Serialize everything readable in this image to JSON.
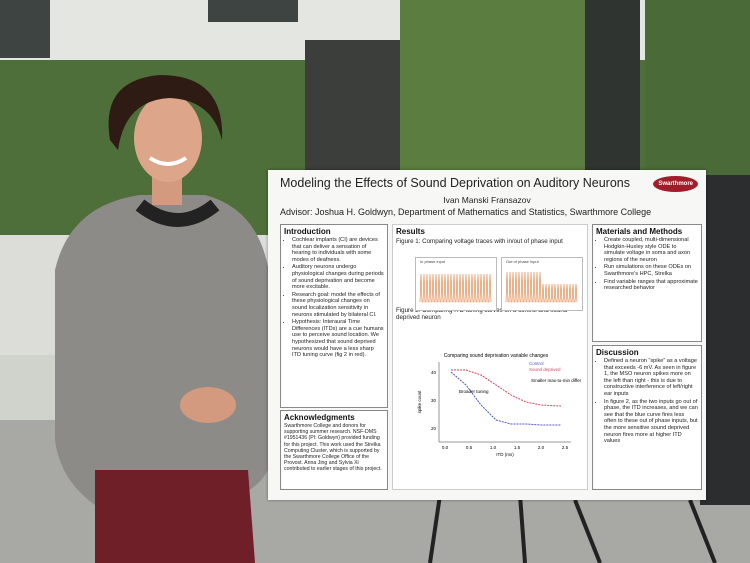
{
  "poster": {
    "logo": "Swarthmore",
    "title": "Modeling the Effects of Sound Deprivation on Auditory Neurons",
    "author": "Ivan Manski Fransazov",
    "advisor": "Advisor: Joshua H. Goldwyn, Department of Mathematics and Statistics, Swarthmore College",
    "introduction": {
      "heading": "Introduction",
      "bullets": [
        "Cochlear implants (CI) are devices that can deliver a sensation of hearing to individuals with some modes of deafness.",
        "Auditory neurons undergo physiological changes during periods of sound deprivation and become more excitable.",
        "Research goal: model the effects of these physiological changes on sound localization sensitivity in neurons stimulated by bilateral CI.",
        "Hypothesis: Interaural Time Differences (ITDs) are a cue humans use to perceive sound location. We hypothesized that sound deprived neurons would have a less sharp ITD tuning curve (fig 2 in red)."
      ]
    },
    "acknowledgments": {
      "heading": "Acknowledgments",
      "text": "Swarthmore College and donors for supporting summer research. NSF-DMS #1951436 (PI: Goldwyn) provided funding for this project. This work used the Strelka Computing Cluster, which is supported by the Swarthmore College Office of the Provost. Anna Jing and Sylvia Xi contributed to earlier stages of this project."
    },
    "results": {
      "heading": "Results",
      "figure1_caption": "Figure 1: Comparing voltage traces with in/out of phase input",
      "figure1_panels": [
        "In phase input",
        "Out of phase input"
      ],
      "figure2_caption": "Figure 2: Comparing ITD tuning curves on a control and sound deprived neuron",
      "figure2_title": "Comparing sound deprivation variable changes",
      "figure2_legend": [
        "Control",
        "Sound deprived"
      ],
      "figure2_annotations": [
        "Broader tuning",
        "Smaller max-to-min difference"
      ],
      "figure2_xlabel": "ITD (ms)",
      "figure2_ylabel": "spike count",
      "figure2_xticks": [
        "0.0",
        "0.5",
        "1.0",
        "1.5",
        "2.0",
        "2.5"
      ],
      "figure2_yticks": [
        "20",
        "30",
        "40"
      ]
    },
    "methods": {
      "heading": "Materials and Methods",
      "bullets": [
        "Create coupled, multi-dimensional Hodgkin-Huxley style ODE to simulate voltage in soma and axon regions of the neuron",
        "Run simulations on these ODEs on Swarthmore's HPC, Strelka",
        "Find variable ranges that approximate researched behavior"
      ]
    },
    "discussion": {
      "heading": "Discussion",
      "bullets": [
        "Defined a neuron “spike” as a voltage that exceeds -6 mV. As seen in figure 1, the MSO neuron spikes more on the left than right - this is due to constructive interference of left/right ear inputs",
        "In figure 2, as the two inputs go out of phase, the ITD increases, and we can see that the blue curve fires less often to these out of phase inputs, but the more sensitive sound deprived neuron fires more at higher ITD values"
      ]
    }
  }
}
